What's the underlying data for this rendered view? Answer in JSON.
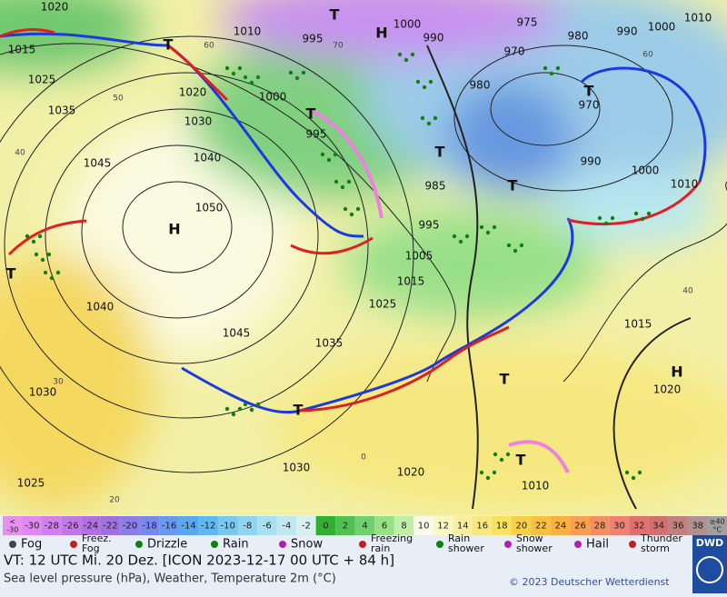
{
  "map": {
    "pressure_labels": [
      "1020",
      "1010",
      "995",
      "1000",
      "990",
      "975",
      "980",
      "990",
      "1000",
      "1010",
      "1015",
      "1025",
      "1035",
      "1020",
      "1030",
      "1045",
      "1040",
      "1050",
      "1000",
      "995",
      "980",
      "970",
      "970",
      "990",
      "1000",
      "1010",
      "985",
      "995",
      "1005",
      "1015",
      "1025",
      "1035",
      "1040",
      "1045",
      "1030",
      "1025",
      "1030",
      "1020",
      "1010",
      "1015",
      "1020"
    ],
    "grid_labels": [
      "60",
      "50",
      "40",
      "30",
      "20",
      "70",
      "0",
      "40",
      "60"
    ],
    "centers": [
      "H",
      "H",
      "H",
      "T",
      "T",
      "T",
      "T",
      "T",
      "T",
      "T",
      "T",
      "T",
      "T"
    ]
  },
  "color_scale": {
    "under_label": [
      "<",
      "-30"
    ],
    "under_color": "#e890f0",
    "values": [
      -30,
      -28,
      -26,
      -24,
      -22,
      -20,
      -18,
      -16,
      -14,
      -12,
      -10,
      -8,
      -6,
      -4,
      -2,
      0,
      2,
      4,
      6,
      8,
      10,
      12,
      14,
      16,
      18,
      20,
      22,
      24,
      26,
      28,
      30,
      32,
      34,
      36,
      38
    ],
    "colors": [
      "#e088f0",
      "#d080ea",
      "#c078e4",
      "#b070e0",
      "#a070e0",
      "#8c7ce8",
      "#7888ec",
      "#6898f0",
      "#58a8f0",
      "#60b8f0",
      "#78c8f0",
      "#90d4f0",
      "#a8e0f0",
      "#c0e8f0",
      "#d8f0f0",
      "#30b030",
      "#50c050",
      "#70d070",
      "#98e088",
      "#c0f0a8",
      "#fafae8",
      "#f8f8c0",
      "#f8f0a0",
      "#f8e880",
      "#f8e060",
      "#f8d048",
      "#f8c040",
      "#f8b040",
      "#f8a050",
      "#f09060",
      "#f08070",
      "#e07070",
      "#d07070",
      "#c08080",
      "#b09090"
    ],
    "over_label": [
      "≥40",
      "°C"
    ],
    "over_color": "#a0a0a0"
  },
  "legend": [
    [
      "Fog"
    ],
    [
      "Freez.",
      "Fog"
    ],
    [
      "Drizzle"
    ],
    [
      "Rain"
    ],
    [
      "Snow"
    ],
    [
      "Freezing",
      "rain"
    ],
    [
      "Rain",
      "shower"
    ],
    [
      "Snow",
      "shower"
    ],
    [
      "Hail"
    ],
    [
      "Thunder",
      "storm"
    ]
  ],
  "footer": {
    "valid_time": "VT: 12 UTC Mi.  20 Dez. [ICON 2023-12-17  00 UTC + 84 h]",
    "description": "Sea level pressure (hPa), Weather, Temperature 2m (°C)",
    "copyright": "© 2023 Deutscher Wetterdienst",
    "logo": "DWD"
  }
}
